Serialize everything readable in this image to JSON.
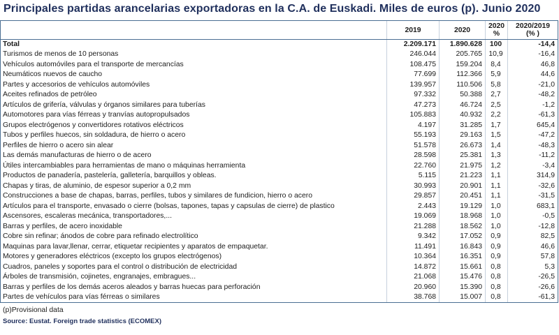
{
  "title": "Principales partidas arancelarias exportadoras en la C.A. de Euskadi. Miles de euros (p). Junio 2020",
  "columns": {
    "c2019": "2019",
    "c2020": "2020",
    "c2020pct_line1": "2020",
    "c2020pct_line2": "%",
    "cvar_line1": "2020/2019",
    "cvar_line2": "(% )"
  },
  "rows": [
    {
      "name": "Total",
      "v2019": "2.209.171",
      "v2020": "1.890.628",
      "pct": "100",
      "var": "-14,4"
    },
    {
      "name": "Turismos de menos de  10 personas",
      "v2019": "246.044",
      "v2020": "205.765",
      "pct": "10,9",
      "var": "-16,4"
    },
    {
      "name": "Vehículos automóviles para el transporte de mercancías",
      "v2019": "108.475",
      "v2020": "159.204",
      "pct": "8,4",
      "var": "46,8"
    },
    {
      "name": "Neumáticos nuevos de caucho",
      "v2019": "77.699",
      "v2020": "112.366",
      "pct": "5,9",
      "var": "44,6"
    },
    {
      "name": "Partes y accesorios de vehículos automóviles",
      "v2019": "139.957",
      "v2020": "110.506",
      "pct": "5,8",
      "var": "-21,0"
    },
    {
      "name": "Aceites refinados de petróleo",
      "v2019": "97.332",
      "v2020": "50.388",
      "pct": "2,7",
      "var": "-48,2"
    },
    {
      "name": "Artículos de grifería, válvulas y órganos similares para tuberías",
      "v2019": "47.273",
      "v2020": "46.724",
      "pct": "2,5",
      "var": "-1,2"
    },
    {
      "name": "Automotores para vías férreas y tranvías autopropulsados",
      "v2019": "105.883",
      "v2020": "40.932",
      "pct": "2,2",
      "var": "-61,3"
    },
    {
      "name": "Grupos electrógenos y convertidores rotativos eléctricos",
      "v2019": "4.197",
      "v2020": "31.285",
      "pct": "1,7",
      "var": "645,4"
    },
    {
      "name": "Tubos y perfiles huecos, sin soldadura, de hierro o acero",
      "v2019": "55.193",
      "v2020": "29.163",
      "pct": "1,5",
      "var": "-47,2"
    },
    {
      "name": "Perfiles de hierro o acero sin alear",
      "v2019": "51.578",
      "v2020": "26.673",
      "pct": "1,4",
      "var": "-48,3"
    },
    {
      "name": "Las demás manufacturas de hierro o de acero",
      "v2019": "28.598",
      "v2020": "25.381",
      "pct": "1,3",
      "var": "-11,2"
    },
    {
      "name": "Útiles intercambiables para herramientas de mano o máquinas herramienta",
      "v2019": "22.760",
      "v2020": "21.975",
      "pct": "1,2",
      "var": "-3,4"
    },
    {
      "name": "Productos de panadería, pastelería, galletería, barquillos y obleas.",
      "v2019": "5.115",
      "v2020": "21.223",
      "pct": "1,1",
      "var": "314,9"
    },
    {
      "name": "Chapas y tiras, de aluminio, de espesor superior a 0,2 mm",
      "v2019": "30.993",
      "v2020": "20.901",
      "pct": "1,1",
      "var": "-32,6"
    },
    {
      "name": "Construcciones a base de chapas, barras, perfiles, tubos y similares de fundicion, hierro o acero",
      "v2019": "29.857",
      "v2020": "20.451",
      "pct": "1,1",
      "var": "-31,5"
    },
    {
      "name": "Artículos para el transporte, envasado o cierre (bolsas, tapones, tapas y capsulas de cierre) de plastico",
      "v2019": "2.443",
      "v2020": "19.129",
      "pct": "1,0",
      "var": "683,1"
    },
    {
      "name": "Ascensores, escaleras mecánica, transportadores,...",
      "v2019": "19.069",
      "v2020": "18.968",
      "pct": "1,0",
      "var": "-0,5"
    },
    {
      "name": "Barras y perfiles, de acero inoxidable",
      "v2019": "21.288",
      "v2020": "18.562",
      "pct": "1,0",
      "var": "-12,8"
    },
    {
      "name": "Cobre sin refinar; ánodos de cobre para refinado electrolítico",
      "v2019": "9.342",
      "v2020": "17.052",
      "pct": "0,9",
      "var": "82,5"
    },
    {
      "name": "Maquinas para lavar,llenar, cerrar, etiquetar recipientes  y aparatos de empaquetar.",
      "v2019": "11.491",
      "v2020": "16.843",
      "pct": "0,9",
      "var": "46,6"
    },
    {
      "name": "Motores y generadores eléctricos (excepto los grupos electrógenos)",
      "v2019": "10.364",
      "v2020": "16.351",
      "pct": "0,9",
      "var": "57,8"
    },
    {
      "name": "Cuadros, paneles y soportes para el control o distribución de electricidad",
      "v2019": "14.872",
      "v2020": "15.661",
      "pct": "0,8",
      "var": "5,3"
    },
    {
      "name": "Árboles de transmisión, cojinetes, engranajes, embragues...",
      "v2019": "21.068",
      "v2020": "15.476",
      "pct": "0,8",
      "var": "-26,5"
    },
    {
      "name": "Barras y perfiles de los demás aceros aleados y barras huecas para perforación",
      "v2019": "20.960",
      "v2020": "15.390",
      "pct": "0,8",
      "var": "-26,6"
    },
    {
      "name": "Partes de vehículos para vías férreas o similares",
      "v2019": "38.768",
      "v2020": "15.007",
      "pct": "0,8",
      "var": "-61,3"
    }
  ],
  "footer": {
    "note": "(p)Provisional data",
    "source": "Source: Eustat. Foreign trade statistics (ECOMEX)"
  }
}
